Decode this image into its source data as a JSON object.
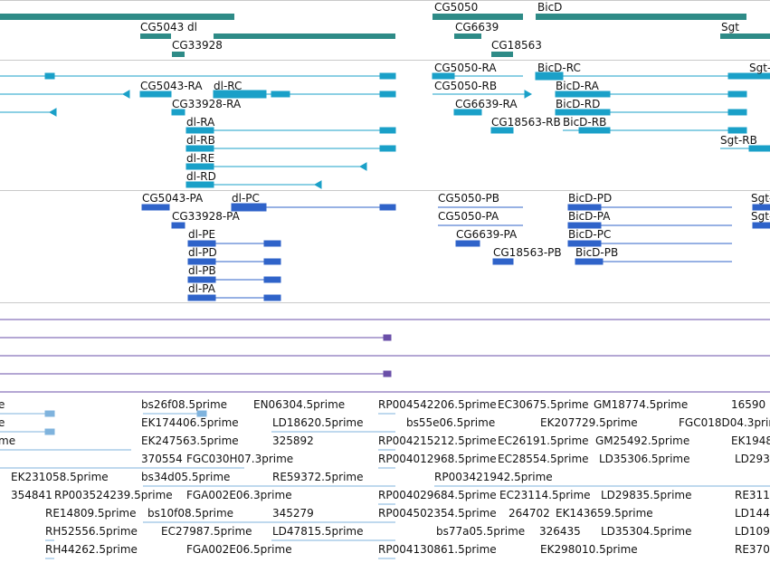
{
  "colors": {
    "gene": "#2e8b87",
    "transcript": "#1aa0c8",
    "protein": "#2f63c9",
    "purple": "#6a4fa8",
    "est": "#7fb3dd",
    "separator": "#c9c9c9"
  },
  "gene_track": {
    "labels": [
      "CG5050",
      "BicD",
      "CG5043 dl",
      "CG6639",
      "Sgt",
      "CG33928",
      "CG18563"
    ]
  },
  "transcript_track": {
    "labels": [
      "CG5050-RA",
      "BicD-RC",
      "Sgt-",
      "CG5043-RA",
      "dl-RC",
      "CG5050-RB",
      "BicD-RA",
      "CG33928-RA",
      "CG6639-RA",
      "BicD-RD",
      "CG18563-RB",
      "BicD-RB",
      "dl-RA",
      "dl-RB",
      "Sgt-RB",
      "dl-RE",
      "dl-RD"
    ]
  },
  "protein_track": {
    "labels": [
      "CG5043-PA",
      "dl-PC",
      "CG5050-PB",
      "BicD-PD",
      "Sgt-",
      "CG33928-PA",
      "CG5050-PA",
      "BicD-PA",
      "Sgt-",
      "dl-PE",
      "CG6639-PA",
      "BicD-PC",
      "dl-PD",
      "CG18563-PB",
      "BicD-PB",
      "dl-PB",
      "dl-PA"
    ]
  },
  "est_track": {
    "labels": [
      "e",
      "bs26f08.5prime",
      "EN06304.5prime",
      "RP004542206.5prime",
      "EC30675.5prime",
      "GM18774.5prime",
      "16590",
      "e",
      "EK174406.5prime",
      "LD18620.5prime",
      "bs55e06.5prime",
      "EK207729.5prime",
      "FGC018D04.3prim",
      "me",
      "EK247563.5prime",
      "325892",
      "RP004215212.5prime",
      "EC26191.5prime",
      "GM25492.5prime",
      "EK1948",
      "370554",
      "FGC030H07.3prime",
      "RP004012968.5prime",
      "EC28554.5prime",
      "LD35306.5prime",
      "LD293",
      "EK231058.5prime",
      "bs34d05.5prime",
      "RE59372.5prime",
      "RP003421942.5prime",
      "354841",
      "RP003524239.5prime",
      "FGA002E06.3prime",
      "RP004029684.5prime",
      "EC23114.5prime",
      "LD29835.5prime",
      "RE311",
      "RE14809.5prime",
      "bs10f08.5prime",
      "345279",
      "RP004502354.5prime",
      "264702",
      "EK143659.5prime",
      "LD144",
      "RH52556.5prime",
      "EC27987.5prime",
      "LD47815.5prime",
      "bs77a05.5prime",
      "326435",
      "LD35304.5prime",
      "LD109",
      "RH44262.5prime",
      "FGA002E06.5prime",
      "RP004130861.5prime",
      "EK298010.5prime",
      "RE370"
    ]
  }
}
